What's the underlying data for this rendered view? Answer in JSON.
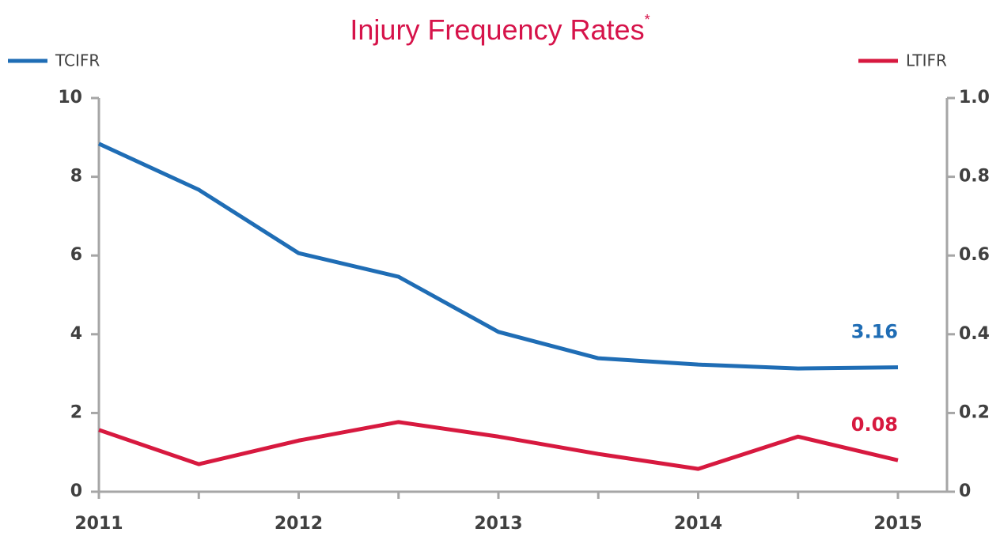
{
  "chart_data": {
    "type": "line",
    "title": "Injury Frequency Rates",
    "title_footnote_mark": "*",
    "title_color": "#d6134a",
    "x": [
      2011,
      2011.5,
      2012,
      2012.5,
      2013,
      2013.5,
      2014,
      2014.5,
      2015
    ],
    "xlim": [
      2011,
      2015
    ],
    "xticks": [
      2011,
      2012,
      2013,
      2014,
      2015
    ],
    "ylim": [
      0,
      10
    ],
    "yticks": [
      0,
      2,
      4,
      6,
      8,
      10
    ],
    "y2lim": [
      0,
      1
    ],
    "y2ticks": [
      0,
      0.2,
      0.4,
      0.6,
      0.8,
      {
        "value": 1,
        "label": "1.0"
      }
    ],
    "series": [
      {
        "name": "TCIFR",
        "color": "#1f6db5",
        "values": [
          8.84,
          7.67,
          6.06,
          5.46,
          4.06,
          3.39,
          3.23,
          3.13,
          3.16
        ]
      },
      {
        "name": "LTIFR",
        "color": "#d7193f",
        "axis": "y2",
        "values": [
          0.157,
          0.07,
          0.13,
          0.177,
          0.14,
          0.096,
          0.058,
          0.14,
          0.08
        ]
      }
    ]
  }
}
